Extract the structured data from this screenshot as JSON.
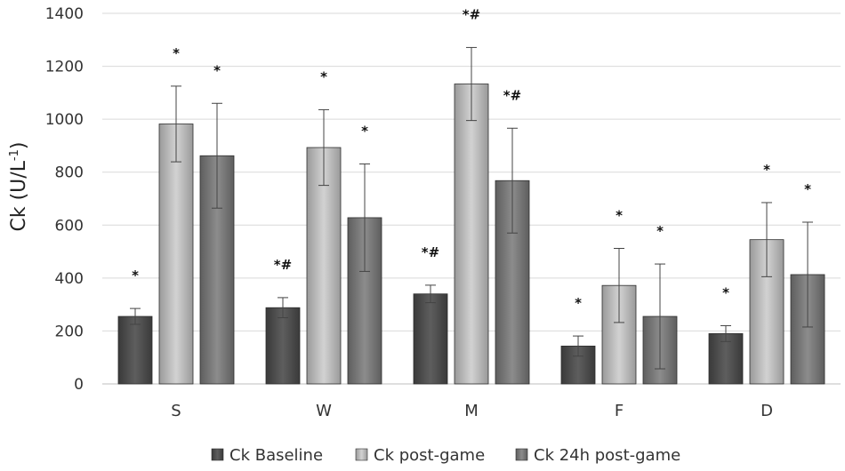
{
  "chart_data": {
    "type": "bar",
    "ylabel": "Ck (U/L",
    "ylabel_sup": "-1",
    "ylabel_close": ")",
    "ylim": [
      0,
      1400
    ],
    "yticks": [
      0,
      200,
      400,
      600,
      800,
      1000,
      1200,
      1400
    ],
    "grid": true,
    "legend_position": "bottom",
    "categories": [
      "S",
      "W",
      "M",
      "F",
      "D"
    ],
    "series": [
      {
        "name": "Ck Baseline",
        "color": "#505050",
        "values": [
          255,
          288,
          340,
          143,
          190
        ],
        "errors": [
          30,
          38,
          33,
          38,
          30
        ],
        "annotations": [
          "*",
          "*#",
          "*#",
          "*",
          "*"
        ]
      },
      {
        "name": "Ck post-game",
        "color": "#b5b5b5",
        "values": [
          982,
          893,
          1133,
          372,
          545
        ],
        "errors": [
          143,
          143,
          138,
          140,
          140
        ],
        "annotations": [
          "*",
          "*",
          "*#",
          "*",
          "*"
        ]
      },
      {
        "name": "Ck 24h post-game",
        "color": "#7a7a7a",
        "values": [
          862,
          628,
          768,
          255,
          413
        ],
        "errors": [
          198,
          203,
          198,
          198,
          198
        ],
        "annotations": [
          "*",
          "*",
          "*#",
          "*",
          "*"
        ]
      }
    ]
  }
}
